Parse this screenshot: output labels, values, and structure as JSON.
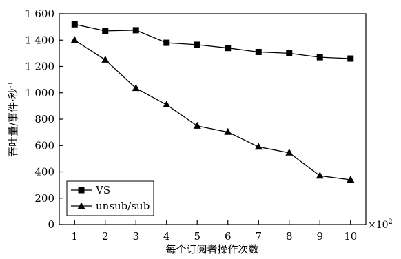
{
  "chart_data": {
    "type": "line",
    "x": [
      1,
      2,
      3,
      4,
      5,
      6,
      7,
      8,
      9,
      10
    ],
    "xticks": [
      "1",
      "2",
      "3",
      "4",
      "5",
      "6",
      "7",
      "8",
      "9",
      "10"
    ],
    "yticks": [
      "0",
      "200",
      "400",
      "600",
      "800",
      "1 000",
      "1 200",
      "1 400",
      "1 600"
    ],
    "xlim": [
      0.5,
      10.5
    ],
    "ylim": [
      0,
      1600
    ],
    "xlabel": "每个订阅者操作次数",
    "ylabel": "吞吐量/事件·秒",
    "ylabel_sup": "-1",
    "x_multiplier": "×10",
    "x_multiplier_sup": "2",
    "legend_position": "bottom-left",
    "grid": false,
    "series": [
      {
        "name": "VS",
        "marker": "square",
        "values": [
          1520,
          1470,
          1475,
          1380,
          1365,
          1340,
          1310,
          1300,
          1270,
          1260
        ]
      },
      {
        "name": "unsub/sub",
        "marker": "triangle",
        "values": [
          1400,
          1250,
          1035,
          910,
          748,
          702,
          590,
          545,
          370,
          340
        ]
      }
    ]
  }
}
